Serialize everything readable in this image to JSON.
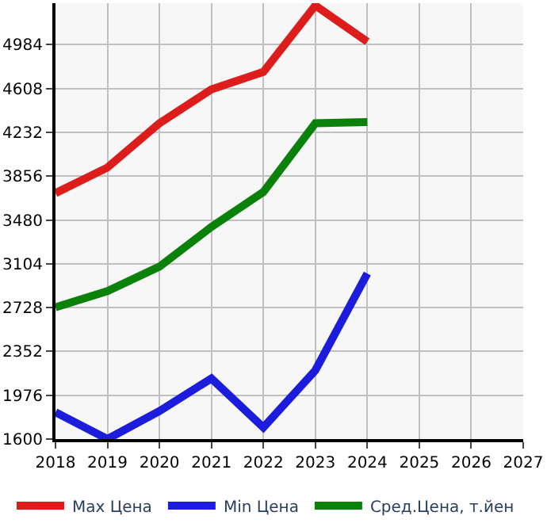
{
  "chart_data": {
    "type": "line",
    "x": [
      2018,
      2019,
      2020,
      2021,
      2022,
      2023,
      2024
    ],
    "series": [
      {
        "name": "Max Цена",
        "color": "#dd1c1c",
        "values": [
          3710,
          3930,
          4310,
          4600,
          4750,
          5320,
          5010
        ]
      },
      {
        "name": "Min Цена",
        "color": "#1c1cdd",
        "values": [
          1830,
          1600,
          1840,
          2120,
          1700,
          2190,
          3020
        ]
      },
      {
        "name": "Сред.Цена, т.йен",
        "color": "#0a820a",
        "values": [
          2730,
          2870,
          3080,
          3420,
          3720,
          4310,
          4320
        ]
      }
    ],
    "xlim": [
      2018,
      2027
    ],
    "xticks": [
      2018,
      2019,
      2020,
      2021,
      2022,
      2023,
      2024,
      2025,
      2026,
      2027
    ],
    "ylim": [
      1600,
      5340
    ],
    "yticks": [
      1600,
      1976,
      2352,
      2728,
      3104,
      3480,
      3856,
      4232,
      4608,
      4984
    ],
    "grid": true,
    "legend": "bottom",
    "marker": "none",
    "line_style": "solid"
  }
}
